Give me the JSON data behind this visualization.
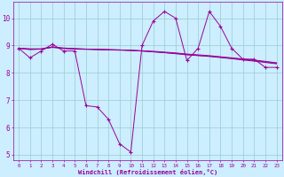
{
  "x": [
    0,
    1,
    2,
    3,
    4,
    5,
    6,
    7,
    8,
    9,
    10,
    11,
    12,
    13,
    14,
    15,
    16,
    17,
    18,
    19,
    20,
    21,
    22,
    23
  ],
  "line_main": [
    8.9,
    8.55,
    8.8,
    9.05,
    8.8,
    8.8,
    6.8,
    6.75,
    6.3,
    5.4,
    5.1,
    9.0,
    9.9,
    10.25,
    10.0,
    8.45,
    8.9,
    10.25,
    9.7,
    8.9,
    8.5,
    8.5,
    8.2,
    8.2
  ],
  "line_smooth1": [
    8.9,
    8.87,
    8.87,
    8.95,
    8.9,
    8.88,
    8.87,
    8.86,
    8.85,
    8.84,
    8.82,
    8.8,
    8.77,
    8.74,
    8.71,
    8.67,
    8.64,
    8.61,
    8.57,
    8.53,
    8.49,
    8.45,
    8.4,
    8.35
  ],
  "line_smooth2": [
    8.9,
    8.88,
    8.88,
    8.95,
    8.91,
    8.89,
    8.87,
    8.86,
    8.85,
    8.84,
    8.83,
    8.81,
    8.79,
    8.76,
    8.73,
    8.69,
    8.66,
    8.63,
    8.59,
    8.55,
    8.51,
    8.47,
    8.42,
    8.37
  ],
  "line_smooth3": [
    8.9,
    8.85,
    8.87,
    8.93,
    8.89,
    8.87,
    8.86,
    8.85,
    8.84,
    8.83,
    8.82,
    8.8,
    8.77,
    8.74,
    8.7,
    8.66,
    8.63,
    8.6,
    8.56,
    8.52,
    8.47,
    8.43,
    8.38,
    8.33
  ],
  "line_color": "#990099",
  "bg_color": "#cceeff",
  "grid_color": "#99cccc",
  "xlabel": "Windchill (Refroidissement éolien,°C)",
  "ylim": [
    4.8,
    10.6
  ],
  "xlim": [
    -0.5,
    23.5
  ],
  "yticks": [
    5,
    6,
    7,
    8,
    9,
    10
  ],
  "xticks": [
    0,
    1,
    2,
    3,
    4,
    5,
    6,
    7,
    8,
    9,
    10,
    11,
    12,
    13,
    14,
    15,
    16,
    17,
    18,
    19,
    20,
    21,
    22,
    23
  ]
}
